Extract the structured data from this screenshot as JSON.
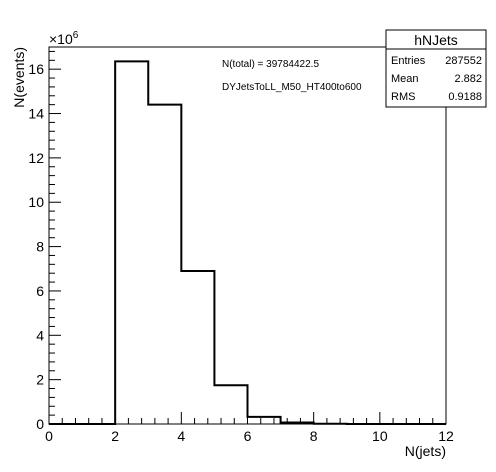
{
  "chart_data": {
    "type": "histogram",
    "title": "",
    "xlabel": "N(jets)",
    "ylabel": "N(events)",
    "x_exponent_label": "",
    "y_multiplier": {
      "base": "×10",
      "exponent": "6"
    },
    "xlim": [
      0,
      12
    ],
    "ylim": [
      0,
      17.0
    ],
    "x_ticks": [
      0,
      2,
      4,
      6,
      8,
      10,
      12
    ],
    "y_ticks": [
      0,
      2,
      4,
      6,
      8,
      10,
      12,
      14,
      16
    ],
    "bin_edges": [
      0,
      1,
      2,
      3,
      4,
      5,
      6,
      7,
      8,
      9,
      10,
      11,
      12
    ],
    "values": [
      0,
      0,
      16.35,
      14.4,
      6.9,
      1.75,
      0.32,
      0.07,
      0.01,
      0,
      0,
      0
    ],
    "annotations": [
      "N(total) = 39784422.5",
      "DYJetsToLL_M50_HT400to600"
    ],
    "stats_box": {
      "title": "hNJets",
      "rows": [
        {
          "label": "Entries",
          "value": "287552"
        },
        {
          "label": "Mean",
          "value": "2.882"
        },
        {
          "label": "RMS",
          "value": "0.9188"
        }
      ]
    }
  }
}
